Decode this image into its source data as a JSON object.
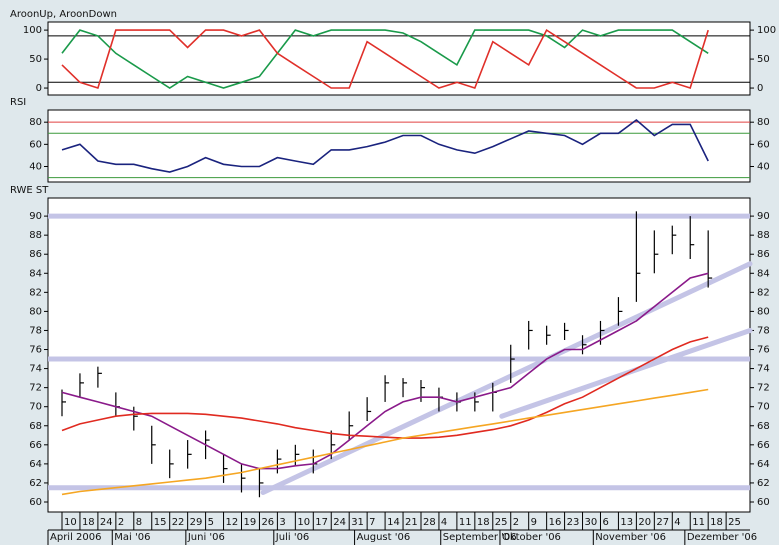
{
  "x_axis": {
    "xlim": [
      -0.78,
      38.33
    ],
    "ticks": [
      {
        "value": 0,
        "label": "10"
      },
      {
        "value": 1,
        "label": "18"
      },
      {
        "value": 2,
        "label": "24"
      },
      {
        "value": 3,
        "label": "2"
      },
      {
        "value": 4,
        "label": "8"
      },
      {
        "value": 5,
        "label": "15"
      },
      {
        "value": 6,
        "label": "22"
      },
      {
        "value": 7,
        "label": "29"
      },
      {
        "value": 8,
        "label": "5"
      },
      {
        "value": 9,
        "label": "12"
      },
      {
        "value": 10,
        "label": "19"
      },
      {
        "value": 11,
        "label": "26"
      },
      {
        "value": 12,
        "label": "3"
      },
      {
        "value": 13,
        "label": "10"
      },
      {
        "value": 14,
        "label": "17"
      },
      {
        "value": 15,
        "label": "24"
      },
      {
        "value": 16,
        "label": "31"
      },
      {
        "value": 17,
        "label": "7"
      },
      {
        "value": 18,
        "label": "14"
      },
      {
        "value": 19,
        "label": "21"
      },
      {
        "value": 20,
        "label": "28"
      },
      {
        "value": 21,
        "label": "4"
      },
      {
        "value": 22,
        "label": "11"
      },
      {
        "value": 23,
        "label": "18"
      },
      {
        "value": 24,
        "label": "25"
      },
      {
        "value": 25,
        "label": "2"
      },
      {
        "value": 26,
        "label": "9"
      },
      {
        "value": 27,
        "label": "16"
      },
      {
        "value": 28,
        "label": "23"
      },
      {
        "value": 29,
        "label": "30"
      },
      {
        "value": 30,
        "label": "6"
      },
      {
        "value": 31,
        "label": "13"
      },
      {
        "value": 32,
        "label": "20"
      },
      {
        "value": 33,
        "label": "27"
      },
      {
        "value": 34,
        "label": "4"
      },
      {
        "value": 35,
        "label": "11"
      },
      {
        "value": 36,
        "label": "18"
      },
      {
        "value": 37,
        "label": "25"
      }
    ],
    "months": [
      {
        "value": -0.78,
        "label": "April 2006"
      },
      {
        "value": 2.8,
        "label": "Mai '06"
      },
      {
        "value": 6.9,
        "label": "Juni '06"
      },
      {
        "value": 11.8,
        "label": "Juli '06"
      },
      {
        "value": 16.3,
        "label": "August '06"
      },
      {
        "value": 21.1,
        "label": "September '06"
      },
      {
        "value": 24.4,
        "label": "Oktober '06"
      },
      {
        "value": 29.6,
        "label": "November '06"
      },
      {
        "value": 34.7,
        "label": "Dezember '06"
      }
    ]
  },
  "chart_data": [
    {
      "type": "line",
      "title": "AroonUp, AroonDown",
      "ylim": [
        -12,
        114
      ],
      "yticks": [
        0,
        50,
        100
      ],
      "hlines": [
        {
          "value": 90,
          "color": "#000000"
        },
        {
          "value": 10,
          "color": "#000000"
        }
      ],
      "series": [
        {
          "color": "#1a9a4a",
          "values": [
            60,
            100,
            90,
            60,
            40,
            20,
            0,
            20,
            10,
            0,
            10,
            20,
            60,
            100,
            90,
            100,
            100,
            100,
            100,
            95,
            80,
            60,
            40,
            100,
            100,
            100,
            100,
            90,
            70,
            100,
            90,
            100,
            100,
            100,
            100,
            80,
            60,
            null
          ]
        },
        {
          "color": "#e0302a",
          "values": [
            40,
            10,
            0,
            100,
            100,
            100,
            100,
            70,
            100,
            100,
            90,
            100,
            60,
            40,
            20,
            0,
            0,
            80,
            60,
            40,
            20,
            0,
            10,
            0,
            80,
            60,
            40,
            100,
            80,
            60,
            40,
            20,
            0,
            0,
            10,
            0,
            100,
            null
          ]
        }
      ]
    },
    {
      "type": "line",
      "title": "RSI",
      "ylim": [
        26,
        91
      ],
      "yticks": [
        40,
        60,
        80
      ],
      "hlines": [
        {
          "value": 80,
          "color": "#e04040"
        },
        {
          "value": 70,
          "color": "#3c9a3c"
        },
        {
          "value": 30,
          "color": "#3c9a3c"
        }
      ],
      "series": [
        {
          "color": "#1a237e",
          "values": [
            55,
            60,
            45,
            42,
            42,
            38,
            35,
            40,
            48,
            42,
            40,
            40,
            48,
            45,
            42,
            55,
            55,
            58,
            62,
            68,
            68,
            60,
            55,
            52,
            58,
            65,
            72,
            70,
            68,
            60,
            70,
            70,
            82,
            68,
            78,
            78,
            45,
            null
          ]
        }
      ]
    },
    {
      "type": "ohlc",
      "title": "RWE ST",
      "ylim": [
        58.95,
        91.9
      ],
      "yticks": [
        60,
        62,
        64,
        66,
        68,
        70,
        72,
        74,
        76,
        78,
        80,
        82,
        84,
        86,
        88,
        90
      ],
      "hlines": [
        {
          "value": 90,
          "color": "#c4c4e6"
        },
        {
          "value": 75,
          "color": "#c4c4e6"
        },
        {
          "value": 61.5,
          "color": "#c4c4e6"
        }
      ],
      "trendlines": [
        {
          "color": "#c4c4e6",
          "points": [
            [
              11.2,
              61
            ],
            [
              38.33,
              85
            ]
          ]
        },
        {
          "color": "#c4c4e6",
          "points": [
            [
              24.5,
              69
            ],
            [
              38.33,
              78
            ]
          ]
        }
      ],
      "bar_color": "#000000",
      "close": [
        70.5,
        72.5,
        73.5,
        70,
        69,
        66,
        64,
        65,
        66.5,
        63.5,
        62.5,
        62,
        64.5,
        65,
        64,
        66,
        68,
        69.5,
        72.5,
        72.5,
        72,
        71,
        70.5,
        70.5,
        71.5,
        75,
        78,
        77.5,
        78,
        76.5,
        78,
        80,
        84,
        86,
        88,
        87,
        83.5,
        null
      ],
      "high": [
        71.8,
        73.5,
        74.2,
        71.5,
        70,
        68,
        65.5,
        66.5,
        67.5,
        65,
        64,
        63.5,
        65.5,
        66,
        65.5,
        67.5,
        69.5,
        71,
        73.3,
        73,
        72.8,
        72,
        71.5,
        71.5,
        72.5,
        76.5,
        79,
        78.5,
        78.8,
        77.5,
        79,
        81.5,
        90.5,
        88.5,
        89,
        90,
        88.5,
        null
      ],
      "low": [
        69,
        71,
        72,
        69,
        67.5,
        64,
        62.5,
        63.5,
        64.5,
        62,
        61,
        60.5,
        63,
        63.8,
        63,
        64.5,
        66.5,
        68.5,
        70.5,
        71,
        70.5,
        69.5,
        69.5,
        69.5,
        69.5,
        72.5,
        76,
        76.5,
        77,
        75.5,
        76.5,
        78.5,
        81,
        84,
        86,
        85.5,
        82.5,
        null
      ],
      "series": [
        {
          "color": "#8a1a8a",
          "values": [
            71.5,
            71,
            70.5,
            70,
            69.5,
            69,
            68,
            67,
            66,
            65,
            64,
            63.5,
            63.5,
            63.8,
            64,
            65,
            66.5,
            68,
            69.5,
            70.5,
            71,
            71,
            70.5,
            71,
            71.5,
            72,
            73.5,
            75,
            76,
            76,
            77,
            78,
            79,
            80.5,
            82,
            83.5,
            84,
            null
          ]
        },
        {
          "color": "#e02a20",
          "values": [
            67.5,
            68.2,
            68.6,
            69,
            69.2,
            69.3,
            69.3,
            69.3,
            69.2,
            69,
            68.8,
            68.5,
            68.2,
            67.8,
            67.5,
            67.2,
            67,
            66.9,
            66.8,
            66.7,
            66.7,
            66.8,
            67,
            67.3,
            67.6,
            68,
            68.6,
            69.4,
            70.3,
            71,
            72,
            73,
            74,
            75,
            76,
            76.8,
            77.3,
            null
          ]
        },
        {
          "color": "#f5a623",
          "values": [
            60.8,
            61.1,
            61.3,
            61.5,
            61.7,
            61.9,
            62.1,
            62.3,
            62.5,
            62.8,
            63.1,
            63.5,
            63.9,
            64.3,
            64.7,
            65.1,
            65.5,
            65.9,
            66.3,
            66.7,
            67,
            67.3,
            67.6,
            67.9,
            68.2,
            68.5,
            68.8,
            69.1,
            69.4,
            69.7,
            70,
            70.3,
            70.6,
            70.9,
            71.2,
            71.5,
            71.8,
            null
          ]
        }
      ]
    }
  ]
}
